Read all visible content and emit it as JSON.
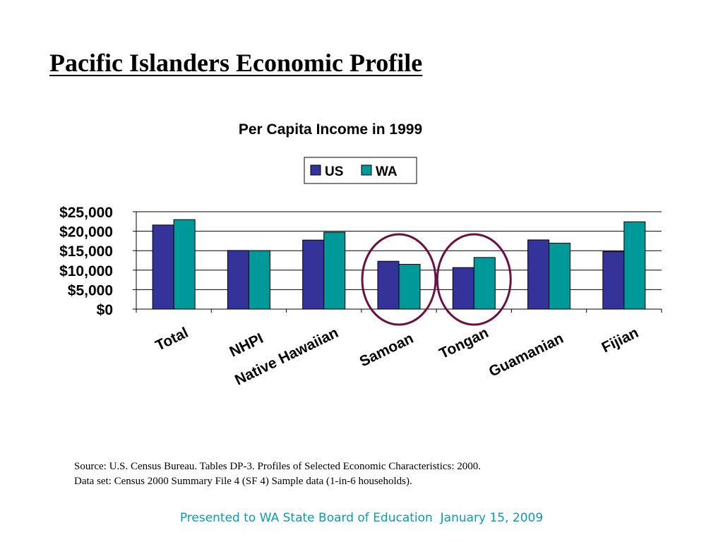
{
  "slide": {
    "title": "Pacific Islanders Economic Profile",
    "source_line1": "Source: U.S. Census Bureau. Tables DP-3. Profiles of Selected Economic Characteristics: 2000.",
    "source_line2": "Data set: Census 2000 Summary File 4 (SF 4) Sample data (1-in-6 households).",
    "footer": "Presented to WA State Board of Education  January 15, 2009"
  },
  "colors": {
    "us": "#333399",
    "wa": "#009999",
    "highlight_circle": "#6b1040",
    "footer_text": "#0a9bb0"
  },
  "chart_data": {
    "type": "bar",
    "title": "Per Capita Income in 1999",
    "categories": [
      "Total",
      "NHPI",
      "Native Hawaiian",
      "Samoan",
      "Tongan",
      "Guamanian",
      "Fijian"
    ],
    "series": [
      {
        "name": "US",
        "values": [
          21587,
          15054,
          17726,
          12284,
          10660,
          17767,
          14773
        ]
      },
      {
        "name": "WA",
        "values": [
          22973,
          15008,
          19730,
          11504,
          13250,
          16928,
          22413
        ]
      }
    ],
    "ylim": [
      0,
      25000
    ],
    "yticks": [
      "$0",
      "$5,000",
      "$10,000",
      "$15,000",
      "$20,000",
      "$25,000"
    ],
    "grid": true,
    "legend_position": "top",
    "highlighted_categories": [
      "Samoan",
      "Tongan"
    ]
  }
}
